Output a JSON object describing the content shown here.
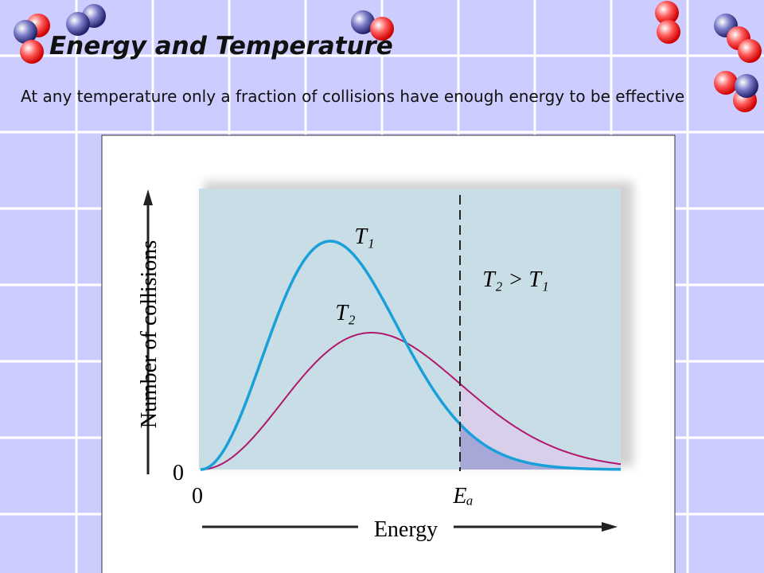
{
  "slide": {
    "title": "Energy and Temperature",
    "text": "At any temperature only a fraction of collisions have enough energy to be effective"
  },
  "figure": {
    "y_axis_label": "Number of collisions",
    "x_axis_label": "Energy",
    "y_origin_label": "0",
    "x_origin_label": "0",
    "threshold_label": "Eₐ",
    "curve_labels": [
      "T₁",
      "T₂"
    ],
    "relation": "T₂ > T₁"
  }
}
